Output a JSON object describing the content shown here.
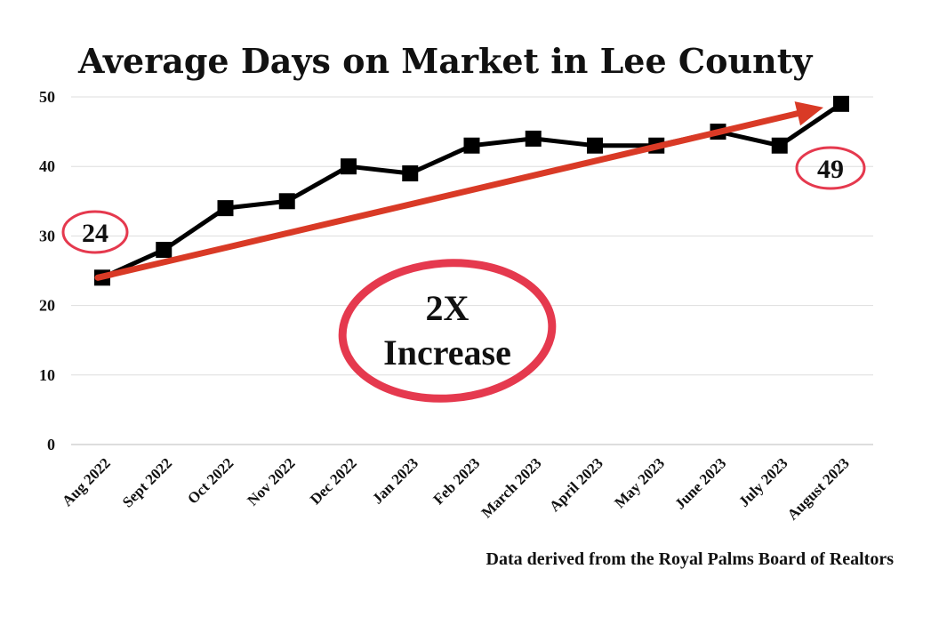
{
  "chart_data": {
    "type": "line",
    "title": "Average Days on Market in Lee County",
    "categories": [
      "Aug 2022",
      "Sept 2022",
      "Oct 2022",
      "Nov 2022",
      "Dec 2022",
      "Jan 2023",
      "Feb 2023",
      "March 2023",
      "April 2023",
      "May 2023",
      "June 2023",
      "July 2023",
      "August 2023"
    ],
    "series": [
      {
        "values": [
          24,
          28,
          34,
          35,
          40,
          39,
          43,
          44,
          43,
          43,
          45,
          43,
          49
        ]
      }
    ],
    "ylim": [
      0,
      50
    ],
    "yticks": [
      0,
      10,
      20,
      30,
      40,
      50
    ],
    "grid": true,
    "xlabel": "",
    "ylabel": "",
    "trend_arrow": {
      "from": 24,
      "to": 49
    },
    "annotations": {
      "start": "24",
      "end": "49",
      "center_line1": "2X",
      "center_line2": "Increase"
    },
    "source": "Data derived from the Royal Palms Board of Realtors"
  },
  "colors": {
    "line": "#000000",
    "marker": "#000000",
    "trend": "#d93a26",
    "circle": "#e5394e",
    "grid": "#dddddd",
    "axis": "#bbbbbb"
  }
}
